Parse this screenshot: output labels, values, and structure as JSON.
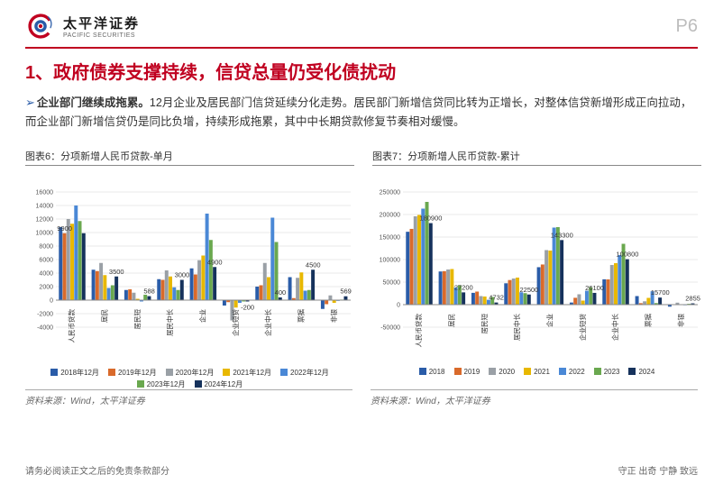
{
  "brand": {
    "cn": "太平洋证券",
    "en": "PACIFIC SECURITIES"
  },
  "page_label": "P6",
  "accent_red": "#c00020",
  "section_title": "1、政府债券支撑持续，信贷总量仍受化债扰动",
  "paragraph": {
    "lead_bold": "企业部门继续成拖累。",
    "rest": "12月企业及居民部门信贷延续分化走势。居民部门新增信贷同比转为正增长，对整体信贷新增形成正向拉动，而企业部门新增信贷仍是同比负增，持续形成拖累，其中中长期贷款修复节奏相对缓慢。"
  },
  "chart6": {
    "type": "bar",
    "title": "图表6：分项新增人民币贷款-单月",
    "categories": [
      "人民币贷款",
      "居民",
      "居民短",
      "居民中长",
      "企业",
      "企业短贷",
      "企业中长",
      "票据",
      "非银"
    ],
    "series_labels": [
      "2018年12月",
      "2019年12月",
      "2020年12月",
      "2021年12月",
      "2022年12月",
      "2023年12月",
      "2024年12月"
    ],
    "series_colors": [
      "#2a5ca8",
      "#d96a2b",
      "#9aa0a6",
      "#e8b800",
      "#4a88d6",
      "#6aa84f",
      "#16325c"
    ],
    "data": [
      [
        10800,
        9900,
        12000,
        11300,
        14000,
        11700,
        9900
      ],
      [
        4500,
        4300,
        5500,
        3700,
        1800,
        2200,
        3500
      ],
      [
        1500,
        1600,
        1100,
        200,
        -200,
        800,
        588
      ],
      [
        3100,
        3000,
        4400,
        3500,
        1900,
        1500,
        3000
      ],
      [
        4700,
        3800,
        5900,
        6600,
        12800,
        8900,
        4900
      ],
      [
        -800,
        -300,
        -3000,
        -1100,
        -400,
        -200,
        -200
      ],
      [
        2000,
        2200,
        5500,
        3400,
        12200,
        8600,
        400
      ],
      [
        3400,
        300,
        3300,
        4100,
        1400,
        1500,
        4500
      ],
      [
        -1300,
        -600,
        700,
        -400,
        -110,
        80,
        569
      ]
    ],
    "ylim": [
      -4000,
      16000
    ],
    "ytick_step": 2000,
    "grid_color": "#e3e3e3",
    "background_color": "#ffffff",
    "font_size_axis": 7,
    "font_size_label": 7.5,
    "bar_group_width": 0.82,
    "callouts": [
      {
        "cat": 0,
        "series": 1,
        "text": "9900"
      },
      {
        "cat": 1,
        "series": 6,
        "text": "3500"
      },
      {
        "cat": 2,
        "series": 6,
        "text": "588"
      },
      {
        "cat": 3,
        "series": 6,
        "text": "3000"
      },
      {
        "cat": 4,
        "series": 6,
        "text": "4900"
      },
      {
        "cat": 5,
        "series": 6,
        "text": "-200"
      },
      {
        "cat": 6,
        "series": 6,
        "text": "400"
      },
      {
        "cat": 7,
        "series": 6,
        "text": "4500"
      },
      {
        "cat": 8,
        "series": 6,
        "text": "569"
      }
    ]
  },
  "chart7": {
    "type": "bar",
    "title": "图表7：分项新增人民币贷款-累计",
    "categories": [
      "人民币贷款",
      "居民",
      "居民短",
      "居民中长",
      "企业",
      "企业短贷",
      "企业中长",
      "票据",
      "非银"
    ],
    "series_labels": [
      "2018",
      "2019",
      "2020",
      "2021",
      "2022",
      "2023",
      "2024"
    ],
    "series_colors": [
      "#2a5ca8",
      "#d96a2b",
      "#9aa0a6",
      "#e8b800",
      "#4a88d6",
      "#6aa84f",
      "#16325c"
    ],
    "data": [
      [
        161700,
        168100,
        196000,
        199000,
        213000,
        228000,
        180900
      ],
      [
        73600,
        74300,
        78000,
        79000,
        38300,
        43200,
        27200
      ],
      [
        26200,
        29000,
        19000,
        18000,
        10800,
        17000,
        4732
      ],
      [
        47400,
        54600,
        58000,
        60000,
        27500,
        25500,
        22500
      ],
      [
        83100,
        89100,
        121000,
        120000,
        171000,
        172000,
        143300
      ],
      [
        4700,
        15200,
        23000,
        9000,
        30800,
        39000,
        26100
      ],
      [
        56200,
        56000,
        88000,
        92000,
        110000,
        135000,
        100800
      ],
      [
        19000,
        3300,
        7400,
        15000,
        29600,
        3500,
        15700
      ],
      [
        -4500,
        -900,
        4400,
        -900,
        -1300,
        1900,
        2855
      ]
    ],
    "ylim": [
      -50000,
      250000
    ],
    "ytick_step": 50000,
    "grid_color": "#e3e3e3",
    "background_color": "#ffffff",
    "font_size_axis": 7,
    "font_size_label": 7.5,
    "bar_group_width": 0.82,
    "callouts": [
      {
        "cat": 0,
        "series": 6,
        "text": "180900"
      },
      {
        "cat": 1,
        "series": 6,
        "text": "27200"
      },
      {
        "cat": 2,
        "series": 6,
        "text": "4732"
      },
      {
        "cat": 3,
        "series": 6,
        "text": "22500"
      },
      {
        "cat": 4,
        "series": 6,
        "text": "143300"
      },
      {
        "cat": 5,
        "series": 6,
        "text": "26100"
      },
      {
        "cat": 6,
        "series": 6,
        "text": "100800"
      },
      {
        "cat": 7,
        "series": 6,
        "text": "15700"
      },
      {
        "cat": 8,
        "series": 6,
        "text": "2855"
      }
    ]
  },
  "source_text": "资料来源：Wind，太平洋证券",
  "footer_left": "请务必阅读正文之后的免责条款部分",
  "footer_right": "守正  出奇  宁静  致远"
}
